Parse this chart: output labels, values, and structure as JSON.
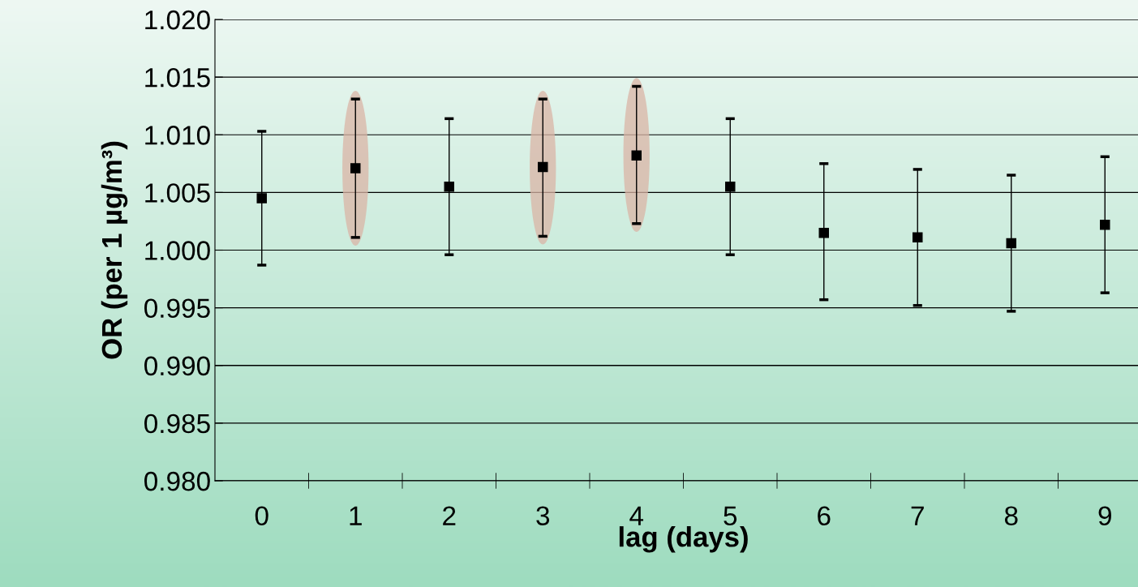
{
  "chart_data": {
    "type": "scatter",
    "xlabel": "lag (days)",
    "ylabel": "OR (per 1 µg/m³)",
    "categories": [
      "0",
      "1",
      "2",
      "3",
      "4",
      "5",
      "6",
      "7",
      "8",
      "9"
    ],
    "series": [
      {
        "color": "#000000",
        "marker": "square",
        "values": [
          1.0045,
          1.0071,
          1.0055,
          1.0072,
          1.0082,
          1.0055,
          1.0015,
          1.0011,
          1.0006,
          1.0022
        ],
        "errors": [
          [
            0.9987,
            1.0103
          ],
          [
            1.0011,
            1.0131
          ],
          [
            0.9996,
            1.0114
          ],
          [
            1.0012,
            1.0131
          ],
          [
            1.0023,
            1.0142
          ],
          [
            0.9996,
            1.0114
          ],
          [
            0.9957,
            1.0075
          ],
          [
            0.9952,
            1.007
          ],
          [
            0.9947,
            1.0065
          ],
          [
            0.9963,
            1.0081
          ]
        ]
      }
    ],
    "ylim": [
      0.98,
      1.02
    ],
    "yticks": [
      {
        "value": 0.98,
        "label": "0.980"
      },
      {
        "value": 0.985,
        "label": "0.985"
      },
      {
        "value": 0.99,
        "label": "0.990"
      },
      {
        "value": 0.995,
        "label": "0.995"
      },
      {
        "value": 1.0,
        "label": "1.000"
      },
      {
        "value": 1.005,
        "label": "1.005"
      },
      {
        "value": 1.01,
        "label": "1.010"
      },
      {
        "value": 1.015,
        "label": "1.015"
      },
      {
        "value": 1.02,
        "label": "1.020"
      }
    ],
    "grid": "y",
    "legend": false
  }
}
